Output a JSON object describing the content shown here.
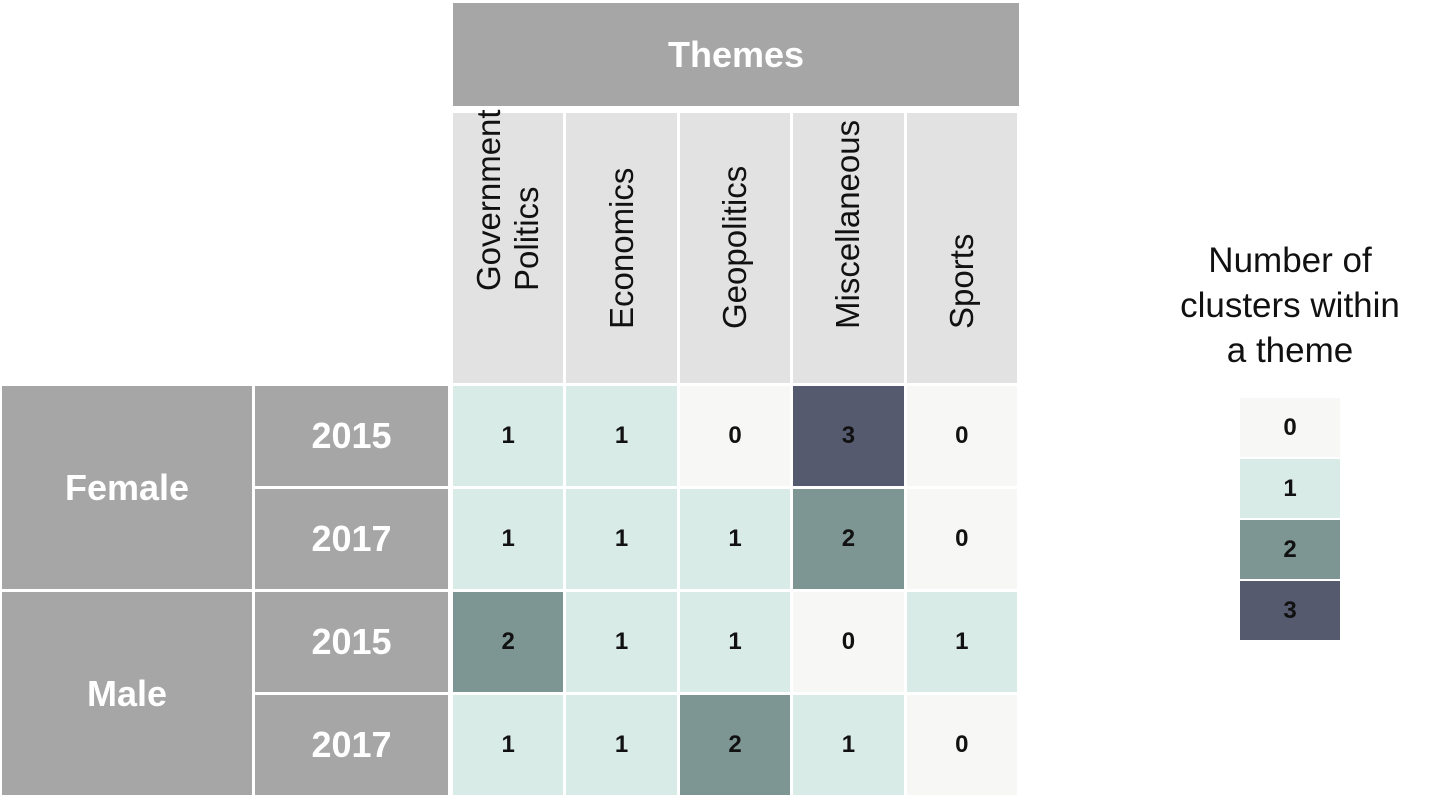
{
  "chart_data": {
    "type": "heatmap",
    "title": "Themes",
    "columns": [
      "Government\nPolitics",
      "Economics",
      "Geopolitics",
      "Miscellaneous",
      "Sports"
    ],
    "groups": [
      {
        "name": "Female",
        "rows": [
          "2015",
          "2017"
        ]
      },
      {
        "name": "Male",
        "rows": [
          "2015",
          "2017"
        ]
      }
    ],
    "values": [
      [
        1,
        1,
        0,
        3,
        0
      ],
      [
        1,
        1,
        1,
        2,
        0
      ],
      [
        2,
        1,
        1,
        0,
        1
      ],
      [
        1,
        1,
        2,
        1,
        0
      ]
    ],
    "colorscale": {
      "0": "#f7f7f5",
      "1": "#d9ebe7",
      "2": "#7e9693",
      "3": "#555a6e"
    },
    "legend": {
      "title": "Number of clusters within a theme",
      "title_lines": [
        "Number of",
        "clusters within",
        "a theme"
      ],
      "levels": [
        0,
        1,
        2,
        3
      ],
      "placement": "right"
    }
  },
  "colors": {
    "header": "#a6a6a6",
    "column_header": "#e2e2e2",
    "header_text": "#ffffff"
  }
}
